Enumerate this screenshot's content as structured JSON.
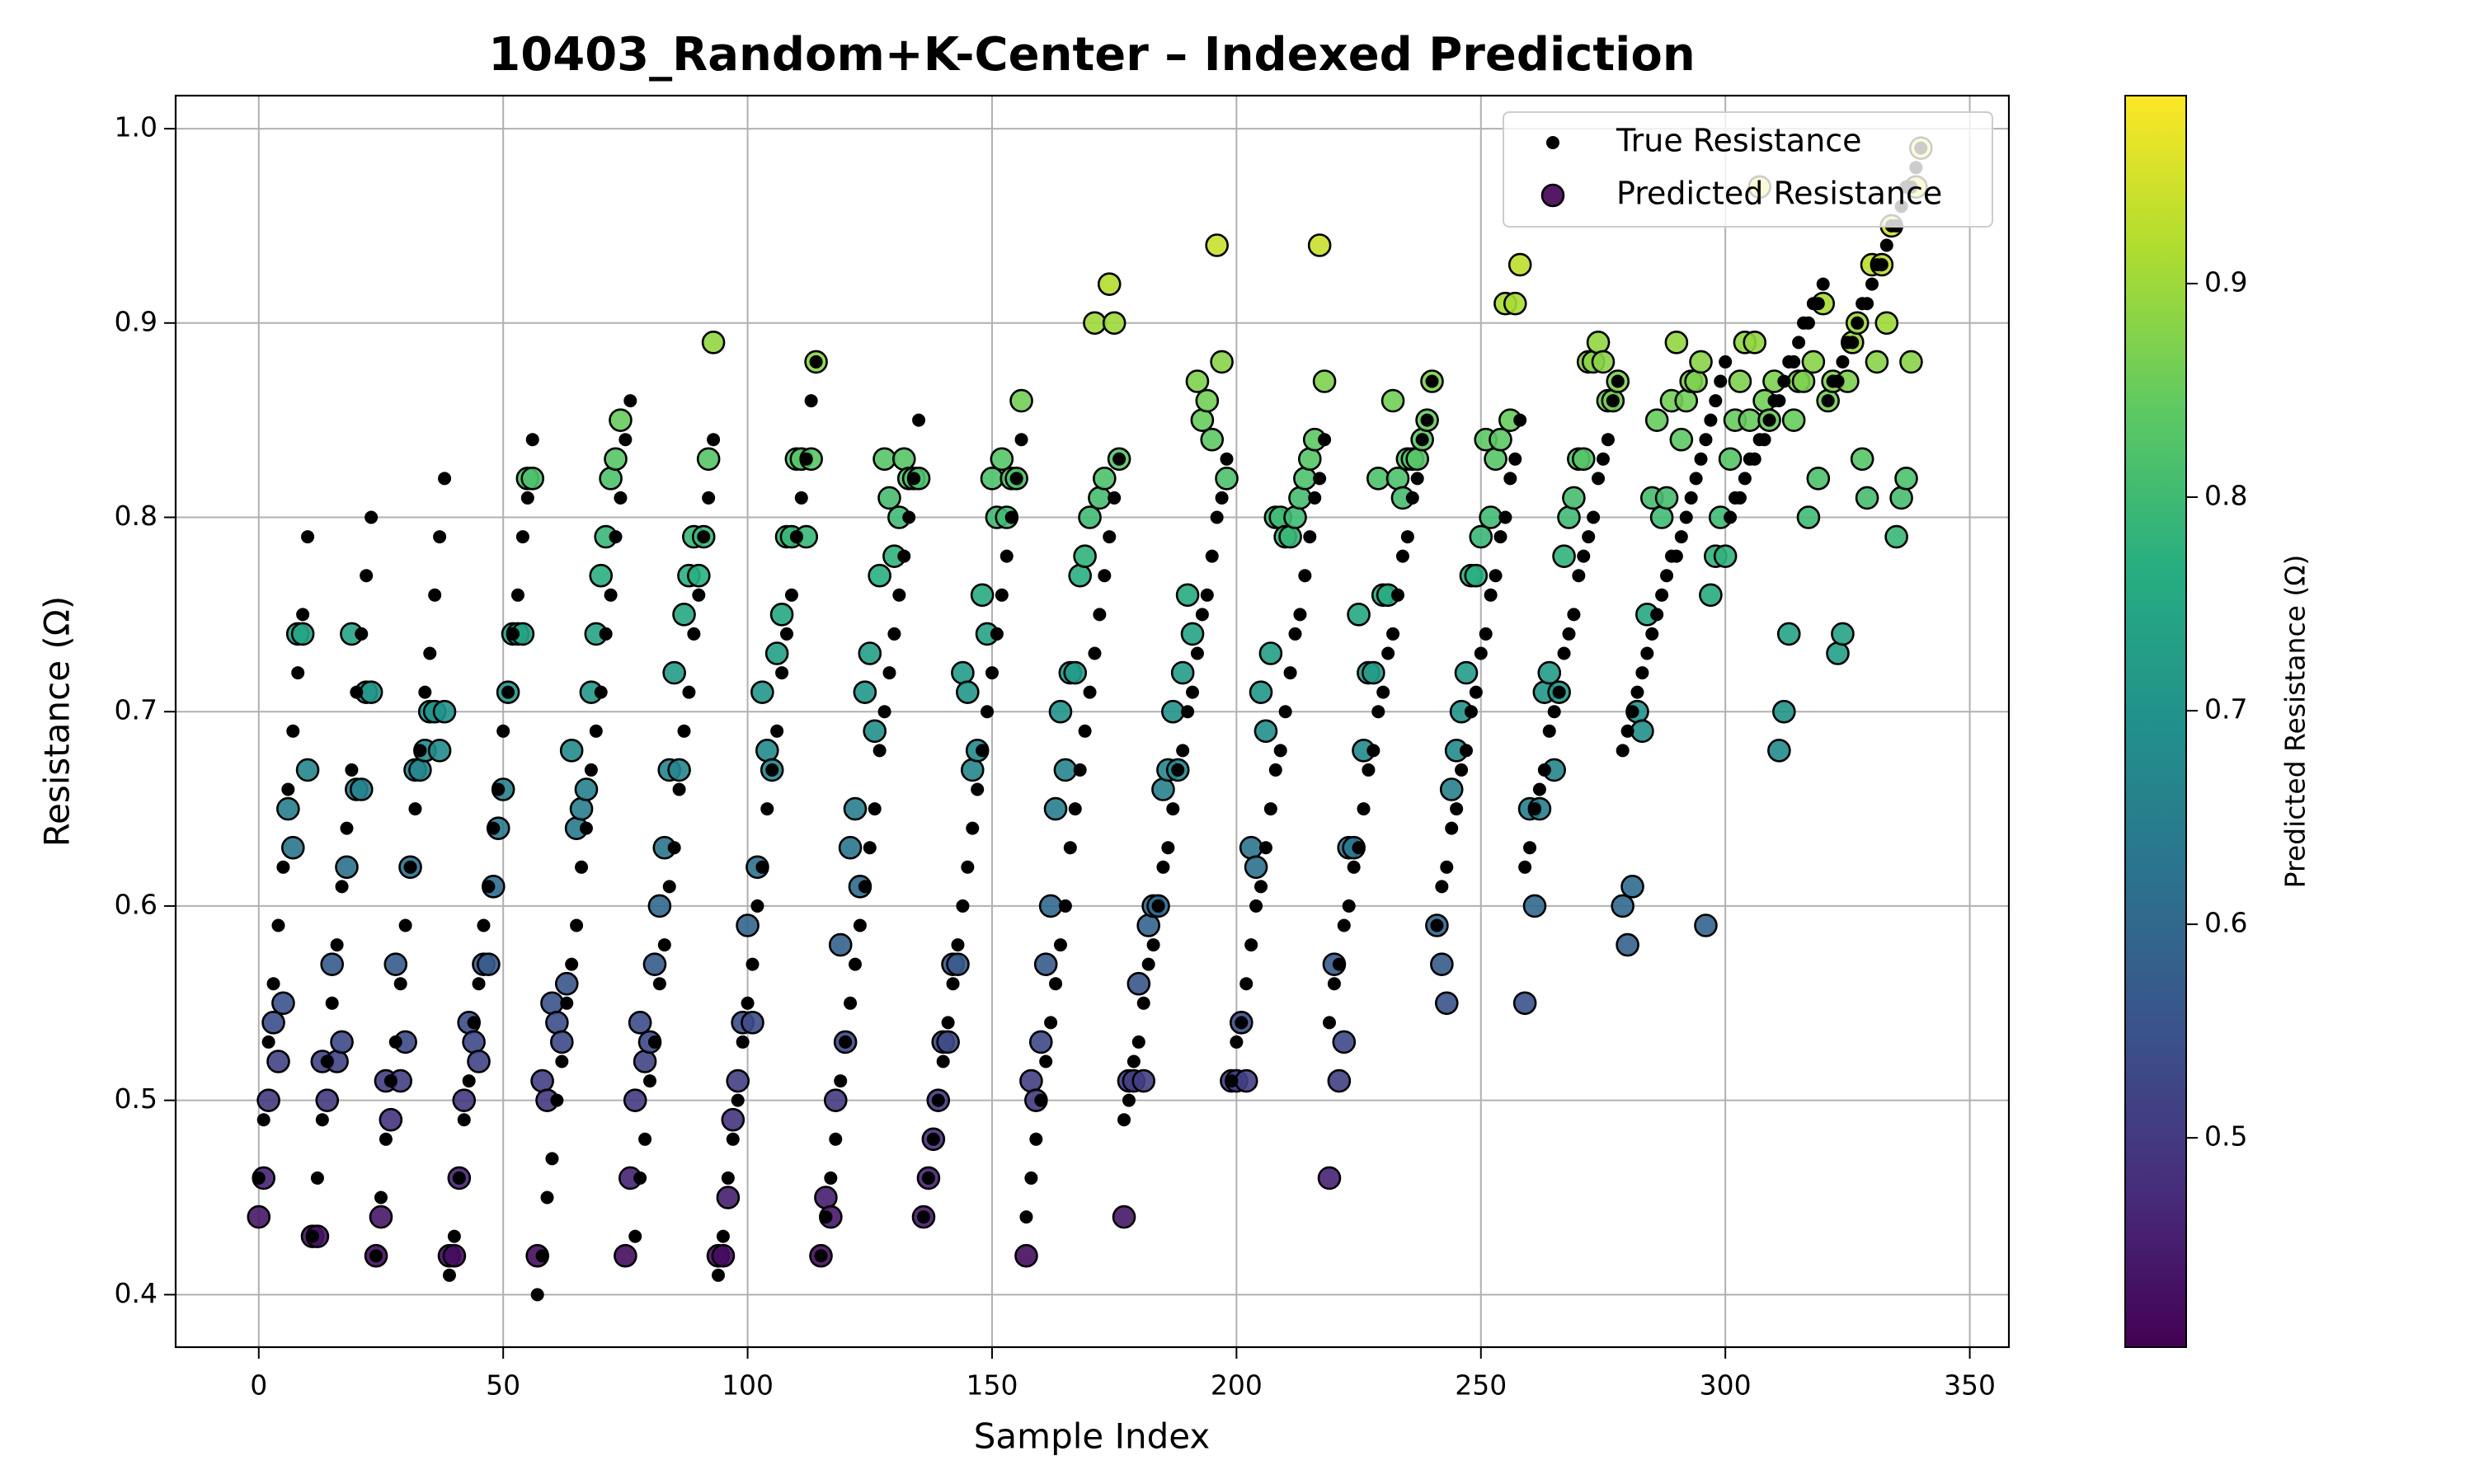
{
  "chart_data": {
    "type": "scatter",
    "title": "10403_Random+K-Center – Indexed Prediction",
    "xlabel": "Sample Index",
    "ylabel": "Resistance (Ω)",
    "xlim": [
      -17,
      358
    ],
    "ylim": [
      0.373,
      1.017
    ],
    "xticks": [
      0,
      50,
      100,
      150,
      200,
      250,
      300,
      350
    ],
    "yticks": [
      0.4,
      0.5,
      0.6,
      0.7,
      0.8,
      0.9,
      {
        "value": 1,
        "label": "1.0"
      }
    ],
    "grid": true,
    "legend": "upper right",
    "x": [
      0,
      1,
      2,
      3,
      4,
      5,
      6,
      7,
      8,
      9,
      10,
      11,
      12,
      13,
      14,
      15,
      16,
      17,
      18,
      19,
      20,
      21,
      22,
      23,
      24,
      25,
      26,
      27,
      28,
      29,
      30,
      31,
      32,
      33,
      34,
      35,
      36,
      37,
      38,
      39,
      40,
      41,
      42,
      43,
      44,
      45,
      46,
      47,
      48,
      49,
      50,
      51,
      52,
      53,
      54,
      55,
      56,
      57,
      58,
      59,
      60,
      61,
      62,
      63,
      64,
      65,
      66,
      67,
      68,
      69,
      70,
      71,
      72,
      73,
      74,
      75,
      76,
      77,
      78,
      79,
      80,
      81,
      82,
      83,
      84,
      85,
      86,
      87,
      88,
      89,
      90,
      91,
      92,
      93,
      94,
      95,
      96,
      97,
      98,
      99,
      100,
      101,
      102,
      103,
      104,
      105,
      106,
      107,
      108,
      109,
      110,
      111,
      112,
      113,
      114,
      115,
      116,
      117,
      118,
      119,
      120,
      121,
      122,
      123,
      124,
      125,
      126,
      127,
      128,
      129,
      130,
      131,
      132,
      133,
      134,
      135,
      136,
      137,
      138,
      139,
      140,
      141,
      142,
      143,
      144,
      145,
      146,
      147,
      148,
      149,
      150,
      151,
      152,
      153,
      154,
      155,
      156,
      157,
      158,
      159,
      160,
      161,
      162,
      163,
      164,
      165,
      166,
      167,
      168,
      169,
      170,
      171,
      172,
      173,
      174,
      175,
      176,
      177,
      178,
      179,
      180,
      181,
      182,
      183,
      184,
      185,
      186,
      187,
      188,
      189,
      190,
      191,
      192,
      193,
      194,
      195,
      196,
      197,
      198,
      199,
      200,
      201,
      202,
      203,
      204,
      205,
      206,
      207,
      208,
      209,
      210,
      211,
      212,
      213,
      214,
      215,
      216,
      217,
      218,
      219,
      220,
      221,
      222,
      223,
      224,
      225,
      226,
      227,
      228,
      229,
      230,
      231,
      232,
      233,
      234,
      235,
      236,
      237,
      238,
      239,
      240,
      241,
      242,
      243,
      244,
      245,
      246,
      247,
      248,
      249,
      250,
      251,
      252,
      253,
      254,
      255,
      256,
      257,
      258,
      259,
      260,
      261,
      262,
      263,
      264,
      265,
      266,
      267,
      268,
      269,
      270,
      271,
      272,
      273,
      274,
      275,
      276,
      277,
      278,
      279,
      280,
      281,
      282,
      283,
      284,
      285,
      286,
      287,
      288,
      289,
      290,
      291,
      292,
      293,
      294,
      295,
      296,
      297,
      298,
      299,
      300,
      301,
      302,
      303,
      304,
      305,
      306,
      307,
      308,
      309,
      310,
      311,
      312,
      313,
      314,
      315,
      316,
      317,
      318,
      319,
      320,
      321,
      322,
      323,
      324,
      325,
      326,
      327,
      328,
      329,
      330,
      331,
      332,
      333,
      334,
      335,
      336,
      337,
      338,
      339,
      340
    ],
    "series": [
      {
        "name": "True Resistance",
        "color": "#000000",
        "values": [
          0.46,
          0.49,
          0.53,
          0.56,
          0.59,
          0.62,
          0.66,
          0.69,
          0.72,
          0.75,
          0.79,
          0.43,
          0.46,
          0.49,
          0.52,
          0.55,
          0.58,
          0.61,
          0.64,
          0.67,
          0.71,
          0.74,
          0.77,
          0.8,
          0.42,
          0.45,
          0.48,
          0.51,
          0.53,
          0.56,
          0.59,
          0.62,
          0.65,
          0.68,
          0.71,
          0.73,
          0.76,
          0.79,
          0.82,
          0.41,
          0.43,
          0.46,
          0.49,
          0.51,
          0.54,
          0.56,
          0.59,
          0.61,
          0.64,
          0.66,
          0.69,
          0.71,
          0.74,
          0.76,
          0.79,
          0.81,
          0.84,
          0.4,
          0.42,
          0.45,
          0.47,
          0.5,
          0.52,
          0.55,
          0.57,
          0.59,
          0.62,
          0.64,
          0.67,
          0.69,
          0.71,
          0.74,
          0.76,
          0.79,
          0.81,
          0.84,
          0.86,
          0.43,
          0.46,
          0.48,
          0.51,
          0.53,
          0.56,
          0.58,
          0.61,
          0.63,
          0.66,
          0.69,
          0.71,
          0.74,
          0.76,
          0.79,
          0.81,
          0.84,
          0.41,
          0.43,
          0.46,
          0.48,
          0.5,
          0.53,
          0.55,
          0.57,
          0.6,
          0.62,
          0.65,
          0.67,
          0.69,
          0.72,
          0.74,
          0.76,
          0.79,
          0.81,
          0.83,
          0.86,
          0.88,
          0.42,
          0.44,
          0.46,
          0.48,
          0.51,
          0.53,
          0.55,
          0.57,
          0.59,
          0.61,
          0.63,
          0.65,
          0.68,
          0.7,
          0.72,
          0.74,
          0.76,
          0.78,
          0.8,
          0.82,
          0.85,
          0.44,
          0.46,
          0.48,
          0.5,
          0.52,
          0.54,
          0.56,
          0.58,
          0.6,
          0.62,
          0.64,
          0.66,
          0.68,
          0.7,
          0.72,
          0.74,
          0.76,
          0.78,
          0.8,
          0.82,
          0.84,
          0.44,
          0.46,
          0.48,
          0.5,
          0.52,
          0.54,
          0.56,
          0.58,
          0.6,
          0.63,
          0.65,
          0.67,
          0.69,
          0.71,
          0.73,
          0.75,
          0.77,
          0.79,
          0.81,
          0.83,
          0.49,
          0.5,
          0.52,
          0.53,
          0.55,
          0.57,
          0.58,
          0.6,
          0.62,
          0.63,
          0.65,
          0.67,
          0.68,
          0.7,
          0.71,
          0.73,
          0.75,
          0.76,
          0.78,
          0.8,
          0.81,
          0.83,
          0.51,
          0.53,
          0.54,
          0.56,
          0.58,
          0.6,
          0.61,
          0.63,
          0.65,
          0.67,
          0.68,
          0.7,
          0.72,
          0.74,
          0.75,
          0.77,
          0.79,
          0.81,
          0.82,
          0.84,
          0.54,
          0.56,
          0.57,
          0.59,
          0.6,
          0.62,
          0.63,
          0.65,
          0.67,
          0.68,
          0.7,
          0.71,
          0.73,
          0.74,
          0.76,
          0.78,
          0.79,
          0.81,
          0.82,
          0.84,
          0.85,
          0.87,
          0.59,
          0.61,
          0.62,
          0.64,
          0.65,
          0.67,
          0.68,
          0.7,
          0.71,
          0.73,
          0.74,
          0.76,
          0.77,
          0.79,
          0.8,
          0.82,
          0.83,
          0.85,
          0.62,
          0.63,
          0.65,
          0.66,
          0.67,
          0.69,
          0.7,
          0.71,
          0.73,
          0.74,
          0.75,
          0.77,
          0.78,
          0.79,
          0.8,
          0.82,
          0.83,
          0.84,
          0.86,
          0.87,
          0.68,
          0.69,
          0.7,
          0.71,
          0.72,
          0.73,
          0.74,
          0.75,
          0.76,
          0.77,
          0.78,
          0.78,
          0.79,
          0.8,
          0.81,
          0.82,
          0.83,
          0.84,
          0.85,
          0.86,
          0.87,
          0.88,
          0.8,
          0.81,
          0.81,
          0.82,
          0.83,
          0.83,
          0.84,
          0.84,
          0.85,
          0.86,
          0.86,
          0.87,
          0.88,
          0.88,
          0.89,
          0.9,
          0.9,
          0.91,
          0.91,
          0.92,
          0.86,
          0.87,
          0.87,
          0.88,
          0.89,
          0.89,
          0.9,
          0.91,
          0.91,
          0.92,
          0.93,
          0.93,
          0.94,
          0.95,
          0.95,
          0.96,
          0.97,
          0.97,
          0.98,
          0.99
        ]
      },
      {
        "name": "Predicted Resistance",
        "colormap": "viridis",
        "values": [
          0.44,
          0.46,
          0.5,
          0.54,
          0.52,
          0.55,
          0.65,
          0.63,
          0.74,
          0.74,
          0.67,
          0.43,
          0.43,
          0.52,
          0.5,
          0.57,
          0.52,
          0.53,
          0.62,
          0.74,
          0.66,
          0.66,
          0.71,
          0.71,
          0.42,
          0.44,
          0.51,
          0.49,
          0.57,
          0.51,
          0.53,
          0.62,
          0.67,
          0.67,
          0.68,
          0.7,
          0.7,
          0.68,
          0.7,
          0.42,
          0.42,
          0.46,
          0.5,
          0.54,
          0.53,
          0.52,
          0.57,
          0.57,
          0.61,
          0.64,
          0.66,
          0.71,
          0.74,
          0.74,
          0.74,
          0.82,
          0.82,
          0.42,
          0.51,
          0.5,
          0.55,
          0.54,
          0.53,
          0.56,
          0.68,
          0.64,
          0.65,
          0.66,
          0.71,
          0.74,
          0.77,
          0.79,
          0.82,
          0.83,
          0.85,
          0.42,
          0.46,
          0.5,
          0.54,
          0.52,
          0.53,
          0.57,
          0.6,
          0.63,
          0.67,
          0.72,
          0.67,
          0.75,
          0.77,
          0.79,
          0.77,
          0.79,
          0.83,
          0.89,
          0.42,
          0.42,
          0.45,
          0.49,
          0.51,
          0.54,
          0.59,
          0.54,
          0.62,
          0.71,
          0.68,
          0.67,
          0.73,
          0.75,
          0.79,
          0.79,
          0.83,
          0.83,
          0.79,
          0.83,
          0.88,
          0.42,
          0.45,
          0.44,
          0.5,
          0.58,
          0.53,
          0.63,
          0.65,
          0.61,
          0.71,
          0.73,
          0.69,
          0.77,
          0.83,
          0.81,
          0.78,
          0.8,
          0.83,
          0.82,
          0.82,
          0.82,
          0.44,
          0.46,
          0.48,
          0.5,
          0.53,
          0.53,
          0.57,
          0.57,
          0.72,
          0.71,
          0.67,
          0.68,
          0.76,
          0.74,
          0.82,
          0.8,
          0.83,
          0.8,
          0.82,
          0.82,
          0.86,
          0.42,
          0.51,
          0.5,
          0.53,
          0.57,
          0.6,
          0.65,
          0.7,
          0.67,
          0.72,
          0.72,
          0.77,
          0.78,
          0.8,
          0.9,
          0.81,
          0.82,
          0.92,
          0.9,
          0.83,
          0.44,
          0.51,
          0.51,
          0.56,
          0.51,
          0.59,
          0.6,
          0.6,
          0.66,
          0.67,
          0.7,
          0.67,
          0.72,
          0.76,
          0.74,
          0.87,
          0.85,
          0.86,
          0.84,
          0.94,
          0.88,
          0.82,
          0.51,
          0.51,
          0.54,
          0.51,
          0.63,
          0.62,
          0.71,
          0.69,
          0.73,
          0.8,
          0.8,
          0.79,
          0.79,
          0.8,
          0.81,
          0.82,
          0.83,
          0.84,
          0.94,
          0.87,
          0.46,
          0.57,
          0.51,
          0.53,
          0.63,
          0.63,
          0.75,
          0.68,
          0.72,
          0.72,
          0.82,
          0.76,
          0.76,
          0.86,
          0.82,
          0.81,
          0.83,
          0.83,
          0.83,
          0.84,
          0.85,
          0.87,
          0.59,
          0.57,
          0.55,
          0.66,
          0.68,
          0.7,
          0.72,
          0.77,
          0.77,
          0.79,
          0.84,
          0.8,
          0.83,
          0.84,
          0.91,
          0.85,
          0.91,
          0.93,
          0.55,
          0.65,
          0.6,
          0.65,
          0.71,
          0.72,
          0.67,
          0.71,
          0.78,
          0.8,
          0.81,
          0.83,
          0.83,
          0.88,
          0.88,
          0.89,
          0.88,
          0.86,
          0.86,
          0.87,
          0.6,
          0.58,
          0.61,
          0.7,
          0.69,
          0.75,
          0.81,
          0.85,
          0.8,
          0.81,
          0.86,
          0.89,
          0.84,
          0.86,
          0.87,
          0.87,
          0.88,
          0.59,
          0.76,
          0.78,
          0.8,
          0.78,
          0.83,
          0.85,
          0.87,
          0.89,
          0.85,
          0.89,
          0.97,
          0.86,
          0.85,
          0.87,
          0.68,
          0.7,
          0.74,
          0.85,
          0.87,
          0.87,
          0.8,
          0.88,
          0.82,
          0.91,
          0.86,
          0.87,
          0.73,
          0.74,
          0.87,
          0.89,
          0.9,
          0.83,
          0.81,
          0.93,
          0.88,
          0.93,
          0.9,
          0.95,
          0.79,
          0.81,
          0.82,
          0.88,
          0.97,
          0.99
        ]
      }
    ],
    "colorbar": {
      "label": "Predicted Resistance (Ω)",
      "colormap": "viridis",
      "lim": [
        0.402,
        0.988
      ],
      "ticks": [
        0.5,
        0.6,
        0.7,
        0.8,
        0.9
      ]
    }
  }
}
